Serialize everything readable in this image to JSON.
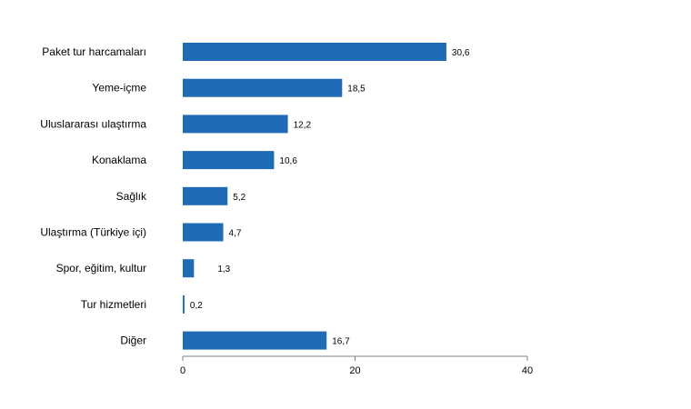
{
  "chart_data": {
    "type": "bar",
    "orientation": "horizontal",
    "categories": [
      "Paket tur harcamaları",
      "Yeme-içme",
      "Uluslararası ulaştırma",
      "Konaklama",
      "Sağlık",
      "Ulaştırma (Türkiye içi)",
      "Spor, eğitim, kultur",
      "Tur hizmetleri",
      "Diğer"
    ],
    "values": [
      30.6,
      18.5,
      12.2,
      10.6,
      5.2,
      4.7,
      1.3,
      0.2,
      16.7
    ],
    "value_labels": [
      "30,6",
      "18,5",
      "12,2",
      "10,6",
      "5,2",
      "4,7",
      "1,3",
      "0,2",
      "16,7"
    ],
    "xlim": [
      0,
      40
    ],
    "x_ticks": [
      0,
      20,
      40
    ],
    "x_tick_labels": [
      "0",
      "20",
      "40"
    ],
    "title": "",
    "xlabel": "",
    "ylabel": "",
    "grid": false,
    "legend": "none",
    "bar_color": "#1f6bb5"
  }
}
